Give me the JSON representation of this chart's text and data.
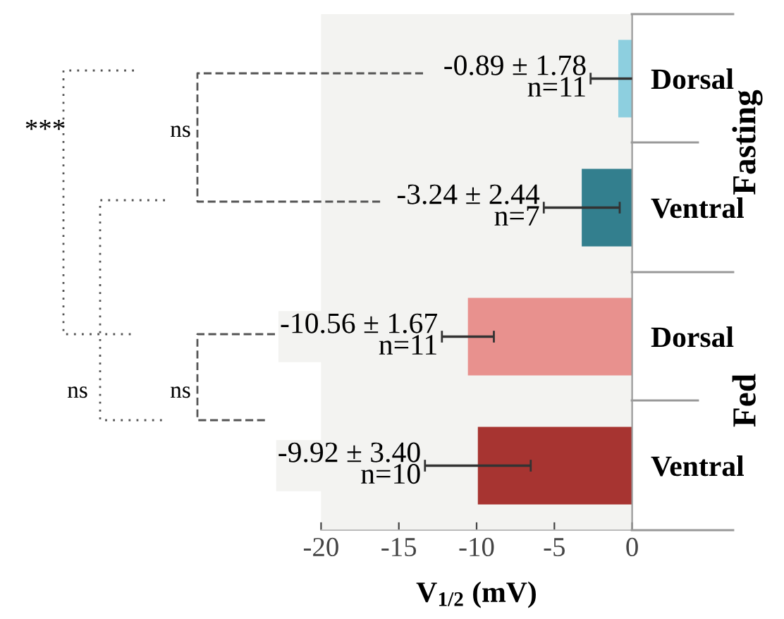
{
  "chart_data": {
    "type": "bar",
    "orientation": "horizontal",
    "categories": [
      "Dorsal",
      "Ventral",
      "Dorsal",
      "Ventral"
    ],
    "values": [
      -0.89,
      -3.24,
      -10.56,
      -9.92
    ],
    "errors": [
      1.78,
      2.44,
      1.67,
      3.4
    ],
    "colors": [
      "#8dcfdf",
      "#337f8e",
      "#e8918e",
      "#a73431"
    ],
    "value_labels": [
      "-0.89 ± 1.78\nn=11",
      "-3.24 ± 2.44\nn=7",
      "-10.56 ± 1.67\nn=11",
      "-9.92 ± 3.40\nn=10"
    ],
    "xlim": [
      -20,
      0
    ],
    "xticks": [
      -20,
      -15,
      -10,
      -5,
      0
    ],
    "xlabel": "V$_{1/2}$ (mV)",
    "annotations": [
      "***",
      "ns",
      "ns",
      "ns",
      "Fasting",
      "Fed"
    ],
    "grid": false,
    "legend": false
  }
}
